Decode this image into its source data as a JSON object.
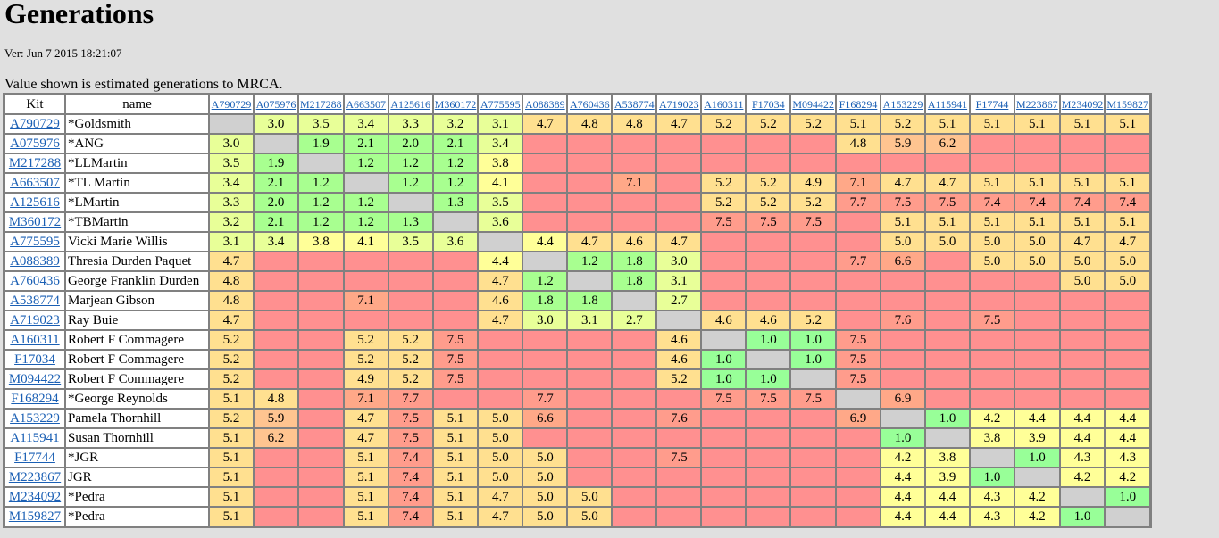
{
  "page": {
    "title": "Generations",
    "version": "Ver: Jun 7 2015 18:21:07",
    "caption": "Value shown is estimated generations to MRCA."
  },
  "table": {
    "headers": {
      "kit": "Kit",
      "name": "name"
    },
    "columns": [
      "A790729",
      "A075976",
      "M217288",
      "A663507",
      "A125616",
      "M360172",
      "A775595",
      "A088389",
      "A760436",
      "A538774",
      "A719023",
      "A160311",
      "F17034",
      "M094422",
      "F168294",
      "A153229",
      "A115941",
      "F17744",
      "M223867",
      "M234092",
      "M159827"
    ],
    "colors": {
      "self": "#d0d0d0",
      "none": "#ff9090",
      "green": "#98ff98",
      "yellow_green": "#e8ff98",
      "yellow": "#ffff98",
      "orange": "#ffe090",
      "salmon": "#ffa888"
    },
    "rows": [
      {
        "kit": "A790729",
        "name": "*Goldsmith",
        "values": [
          "self",
          "3.0",
          "3.5",
          "3.4",
          "3.3",
          "3.2",
          "3.1",
          "4.7",
          "4.8",
          "4.8",
          "4.7",
          "5.2",
          "5.2",
          "5.2",
          "5.1",
          "5.2",
          "5.1",
          "5.1",
          "5.1",
          "5.1",
          "5.1"
        ]
      },
      {
        "kit": "A075976",
        "name": "*ANG",
        "values": [
          "3.0",
          "self",
          "1.9",
          "2.1",
          "2.0",
          "2.1",
          "3.4",
          "",
          "",
          "",
          "",
          "",
          "",
          "",
          "4.8",
          "5.9",
          "6.2",
          "",
          "",
          "",
          ""
        ]
      },
      {
        "kit": "M217288",
        "name": "*LLMartin",
        "values": [
          "3.5",
          "1.9",
          "self",
          "1.2",
          "1.2",
          "1.2",
          "3.8",
          "",
          "",
          "",
          "",
          "",
          "",
          "",
          "",
          "",
          "",
          "",
          "",
          "",
          ""
        ]
      },
      {
        "kit": "A663507",
        "name": "*TL Martin",
        "values": [
          "3.4",
          "2.1",
          "1.2",
          "self",
          "1.2",
          "1.2",
          "4.1",
          "",
          "",
          "7.1",
          "",
          "5.2",
          "5.2",
          "4.9",
          "7.1",
          "4.7",
          "4.7",
          "5.1",
          "5.1",
          "5.1",
          "5.1"
        ]
      },
      {
        "kit": "A125616",
        "name": "*LMartin",
        "values": [
          "3.3",
          "2.0",
          "1.2",
          "1.2",
          "self",
          "1.3",
          "3.5",
          "",
          "",
          "",
          "",
          "5.2",
          "5.2",
          "5.2",
          "7.7",
          "7.5",
          "7.5",
          "7.4",
          "7.4",
          "7.4",
          "7.4"
        ]
      },
      {
        "kit": "M360172",
        "name": "*TBMartin",
        "values": [
          "3.2",
          "2.1",
          "1.2",
          "1.2",
          "1.3",
          "self",
          "3.6",
          "",
          "",
          "",
          "",
          "7.5",
          "7.5",
          "7.5",
          "",
          "5.1",
          "5.1",
          "5.1",
          "5.1",
          "5.1",
          "5.1"
        ]
      },
      {
        "kit": "A775595",
        "name": "Vicki Marie Willis",
        "values": [
          "3.1",
          "3.4",
          "3.8",
          "4.1",
          "3.5",
          "3.6",
          "self",
          "4.4",
          "4.7",
          "4.6",
          "4.7",
          "",
          "",
          "",
          "",
          "5.0",
          "5.0",
          "5.0",
          "5.0",
          "4.7",
          "4.7"
        ]
      },
      {
        "kit": "A088389",
        "name": "Thresia Durden Paquet",
        "values": [
          "4.7",
          "",
          "",
          "",
          "",
          "",
          "4.4",
          "self",
          "1.2",
          "1.8",
          "3.0",
          "",
          "",
          "",
          "7.7",
          "6.6",
          "",
          "5.0",
          "5.0",
          "5.0",
          "5.0"
        ]
      },
      {
        "kit": "A760436",
        "name": "George Franklin Durden",
        "values": [
          "4.8",
          "",
          "",
          "",
          "",
          "",
          "4.7",
          "1.2",
          "self",
          "1.8",
          "3.1",
          "",
          "",
          "",
          "",
          "",
          "",
          "",
          "",
          "5.0",
          "5.0"
        ]
      },
      {
        "kit": "A538774",
        "name": "Marjean Gibson",
        "values": [
          "4.8",
          "",
          "",
          "7.1",
          "",
          "",
          "4.6",
          "1.8",
          "1.8",
          "self",
          "2.7",
          "",
          "",
          "",
          "",
          "",
          "",
          "",
          "",
          "",
          ""
        ]
      },
      {
        "kit": "A719023",
        "name": "Ray Buie",
        "values": [
          "4.7",
          "",
          "",
          "",
          "",
          "",
          "4.7",
          "3.0",
          "3.1",
          "2.7",
          "self",
          "4.6",
          "4.6",
          "5.2",
          "",
          "7.6",
          "",
          "7.5",
          "",
          "",
          ""
        ]
      },
      {
        "kit": "A160311",
        "name": "Robert F Commagere",
        "values": [
          "5.2",
          "",
          "",
          "5.2",
          "5.2",
          "7.5",
          "",
          "",
          "",
          "",
          "4.6",
          "self",
          "1.0",
          "1.0",
          "7.5",
          "",
          "",
          "",
          "",
          "",
          ""
        ]
      },
      {
        "kit": "F17034",
        "name": "Robert F Commagere",
        "values": [
          "5.2",
          "",
          "",
          "5.2",
          "5.2",
          "7.5",
          "",
          "",
          "",
          "",
          "4.6",
          "1.0",
          "self",
          "1.0",
          "7.5",
          "",
          "",
          "",
          "",
          "",
          ""
        ]
      },
      {
        "kit": "M094422",
        "name": "Robert F Commagere",
        "values": [
          "5.2",
          "",
          "",
          "4.9",
          "5.2",
          "7.5",
          "",
          "",
          "",
          "",
          "5.2",
          "1.0",
          "1.0",
          "self",
          "7.5",
          "",
          "",
          "",
          "",
          "",
          ""
        ]
      },
      {
        "kit": "F168294",
        "name": "*George Reynolds",
        "values": [
          "5.1",
          "4.8",
          "",
          "7.1",
          "7.7",
          "",
          "",
          "7.7",
          "",
          "",
          "",
          "7.5",
          "7.5",
          "7.5",
          "self",
          "6.9",
          "",
          "",
          "",
          "",
          ""
        ]
      },
      {
        "kit": "A153229",
        "name": "Pamela Thornhill",
        "values": [
          "5.2",
          "5.9",
          "",
          "4.7",
          "7.5",
          "5.1",
          "5.0",
          "6.6",
          "",
          "",
          "7.6",
          "",
          "",
          "",
          "6.9",
          "self",
          "1.0",
          "4.2",
          "4.4",
          "4.4",
          "4.4"
        ]
      },
      {
        "kit": "A115941",
        "name": "Susan Thornhill",
        "values": [
          "5.1",
          "6.2",
          "",
          "4.7",
          "7.5",
          "5.1",
          "5.0",
          "",
          "",
          "",
          "",
          "",
          "",
          "",
          "",
          "1.0",
          "self",
          "3.8",
          "3.9",
          "4.4",
          "4.4"
        ]
      },
      {
        "kit": "F17744",
        "name": "*JGR",
        "values": [
          "5.1",
          "",
          "",
          "5.1",
          "7.4",
          "5.1",
          "5.0",
          "5.0",
          "",
          "",
          "7.5",
          "",
          "",
          "",
          "",
          "4.2",
          "3.8",
          "self",
          "1.0",
          "4.3",
          "4.3"
        ]
      },
      {
        "kit": "M223867",
        "name": "JGR",
        "values": [
          "5.1",
          "",
          "",
          "5.1",
          "7.4",
          "5.1",
          "5.0",
          "5.0",
          "",
          "",
          "",
          "",
          "",
          "",
          "",
          "4.4",
          "3.9",
          "1.0",
          "self",
          "4.2",
          "4.2"
        ]
      },
      {
        "kit": "M234092",
        "name": "*Pedra",
        "values": [
          "5.1",
          "",
          "",
          "5.1",
          "7.4",
          "5.1",
          "4.7",
          "5.0",
          "5.0",
          "",
          "",
          "",
          "",
          "",
          "",
          "4.4",
          "4.4",
          "4.3",
          "4.2",
          "self",
          "1.0"
        ]
      },
      {
        "kit": "M159827",
        "name": "*Pedra",
        "values": [
          "5.1",
          "",
          "",
          "5.1",
          "7.4",
          "5.1",
          "4.7",
          "5.0",
          "5.0",
          "",
          "",
          "",
          "",
          "",
          "",
          "4.4",
          "4.4",
          "4.3",
          "4.2",
          "1.0",
          "self"
        ]
      }
    ]
  }
}
